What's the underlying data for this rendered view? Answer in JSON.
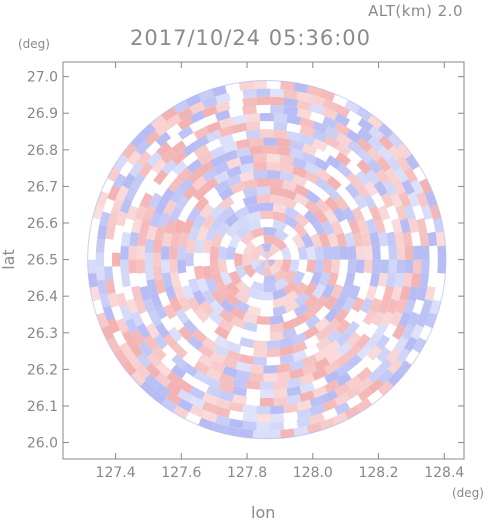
{
  "header": {
    "alt_label": "ALT(km) 2.0",
    "time_label": "2017/10/24 05:36:00"
  },
  "chart_data": {
    "type": "heatmap",
    "title": "2017/10/24 05:36:00",
    "subtitle": "ALT(km) 2.0",
    "xlabel": "lon",
    "ylabel": "lat",
    "x_unit": "(deg)",
    "y_unit": "(deg)",
    "xlim": [
      127.24,
      128.46
    ],
    "ylim": [
      25.955,
      27.04
    ],
    "x_ticks": [
      127.4,
      127.6,
      127.8,
      128.0,
      128.2,
      128.4
    ],
    "x_tick_labels": [
      "127.4",
      "127.6",
      "127.8",
      "128.0",
      "128.2",
      "128.4"
    ],
    "y_ticks": [
      26.0,
      26.1,
      26.2,
      26.3,
      26.4,
      26.5,
      26.6,
      26.7,
      26.8,
      26.9,
      27.0
    ],
    "y_tick_labels": [
      "26.0",
      "26.1",
      "26.2",
      "26.3",
      "26.4",
      "26.5",
      "26.6",
      "26.7",
      "26.8",
      "26.9",
      "27.0"
    ],
    "center": {
      "lon": 127.86,
      "lat": 26.5
    },
    "radius_deg": 0.545,
    "grid": false,
    "colors": {
      "positive": "#f2a6a6",
      "negative": "#aab2f2",
      "neutral": "#ffffff",
      "axis": "#888888"
    }
  }
}
